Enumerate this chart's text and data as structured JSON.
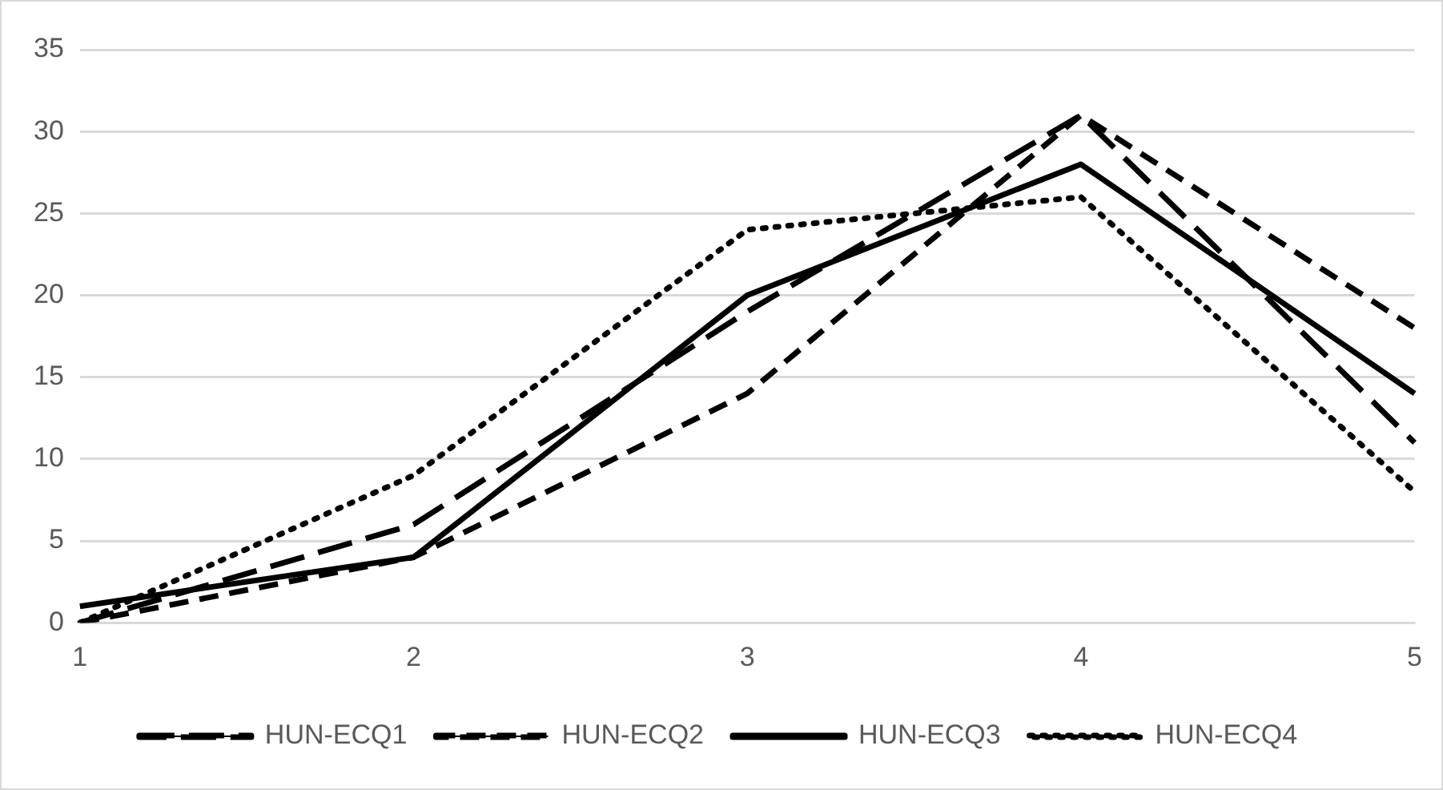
{
  "chart_data": {
    "type": "line",
    "categories": [
      "1",
      "2",
      "3",
      "4",
      "5"
    ],
    "series": [
      {
        "name": "HUN-ECQ1",
        "color": "#000000",
        "line_style": "dashed",
        "values": [
          0,
          6,
          19,
          31,
          11
        ]
      },
      {
        "name": "HUN-ECQ2",
        "color": "#000000",
        "line_style": "dashed",
        "values": [
          0,
          4,
          14,
          31,
          18
        ]
      },
      {
        "name": "HUN-ECQ3",
        "color": "#000000",
        "line_style": "solid",
        "values": [
          1,
          4,
          20,
          28,
          14
        ]
      },
      {
        "name": "HUN-ECQ4",
        "color": "#000000",
        "line_style": "dotted",
        "values": [
          0,
          9,
          24,
          26,
          8
        ]
      }
    ],
    "ylim": [
      0,
      35
    ],
    "yticks": [
      0,
      5,
      10,
      15,
      20,
      25,
      30,
      35
    ],
    "grid": "y",
    "legend": "bottom",
    "marker": "none"
  }
}
